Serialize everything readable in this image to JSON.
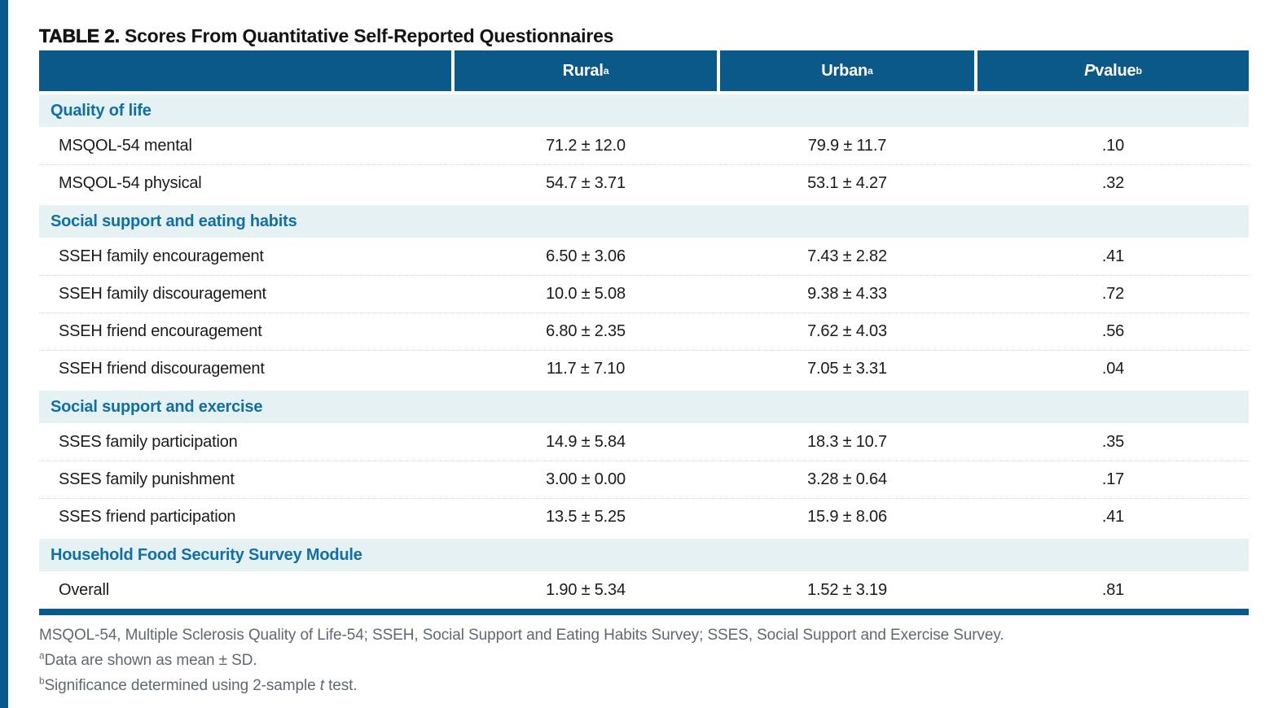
{
  "colors": {
    "accent_blue": "#0b5988",
    "section_band_bg": "#e6f1f3",
    "section_text_blue": "#0f6fa8",
    "footnote_gray": "#5e6973"
  },
  "title": {
    "label": "TABLE 2.",
    "text": "Scores From Quantitative Self-Reported Questionnaires"
  },
  "table": {
    "columns": {
      "rural": {
        "label": "Rural",
        "sup": "a"
      },
      "urban": {
        "label": "Urban",
        "sup": "a"
      },
      "pvalue": {
        "italic": "P",
        "label": " value",
        "sup": "b"
      }
    },
    "sections": [
      {
        "header": "Quality of life",
        "rows": [
          {
            "label": "MSQOL-54 mental",
            "rural": "71.2 ± 12.0",
            "urban": "79.9 ± 11.7",
            "p": ".10"
          },
          {
            "label": "MSQOL-54 physical",
            "rural": "54.7 ± 3.71",
            "urban": "53.1 ± 4.27",
            "p": ".32"
          }
        ]
      },
      {
        "header": "Social support and eating habits",
        "rows": [
          {
            "label": "SSEH family encouragement",
            "rural": "6.50 ± 3.06",
            "urban": "7.43 ± 2.82",
            "p": ".41"
          },
          {
            "label": "SSEH family discouragement",
            "rural": "10.0 ± 5.08",
            "urban": "9.38 ± 4.33",
            "p": ".72"
          },
          {
            "label": "SSEH friend encouragement",
            "rural": "6.80 ± 2.35",
            "urban": "7.62 ± 4.03",
            "p": ".56"
          },
          {
            "label": "SSEH friend discouragement",
            "rural": "11.7 ± 7.10",
            "urban": "7.05 ± 3.31",
            "p": ".04"
          }
        ]
      },
      {
        "header": "Social support and exercise",
        "rows": [
          {
            "label": "SSES family participation",
            "rural": "14.9 ± 5.84",
            "urban": "18.3 ± 10.7",
            "p": ".35"
          },
          {
            "label": "SSES family punishment",
            "rural": "3.00 ± 0.00",
            "urban": "3.28 ± 0.64",
            "p": ".17"
          },
          {
            "label": "SSES friend participation",
            "rural": "13.5 ± 5.25",
            "urban": "15.9 ± 8.06",
            "p": ".41"
          }
        ]
      },
      {
        "header": "Household Food Security Survey Module",
        "rows": [
          {
            "label": "Overall",
            "rural": "1.90 ± 5.34",
            "urban": "1.52 ± 3.19",
            "p": ".81"
          }
        ]
      }
    ]
  },
  "footnotes": {
    "abbreviations": "MSQOL-54, Multiple Sclerosis Quality of Life-54; SSEH, Social Support and Eating Habits Survey; SSES, Social Support and Exercise Survey.",
    "a": {
      "sup": "a",
      "text": "Data are shown as mean ± SD."
    },
    "b": {
      "sup": "b",
      "pre": "Significance determined using 2-sample ",
      "italic": "t",
      "post": " test."
    }
  }
}
